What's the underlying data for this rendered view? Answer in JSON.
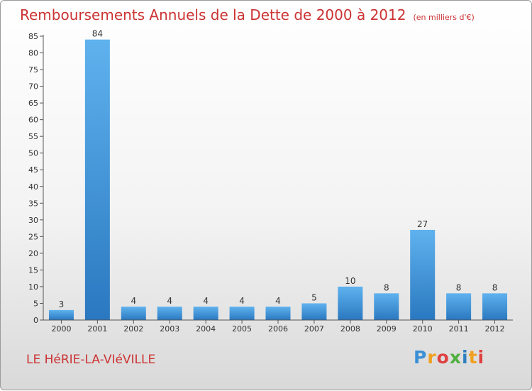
{
  "chart_data": {
    "type": "bar",
    "title": "Remboursements Annuels de la Dette de 2000 à 2012",
    "subtitle": "(en milliers d'€)",
    "categories": [
      "2000",
      "2001",
      "2002",
      "2003",
      "2004",
      "2005",
      "2006",
      "2007",
      "2008",
      "2009",
      "2010",
      "2011",
      "2012"
    ],
    "values": [
      3,
      84,
      4,
      4,
      4,
      4,
      4,
      5,
      10,
      8,
      27,
      8,
      8
    ],
    "ylim": [
      0,
      85
    ],
    "yticks": [
      0,
      5,
      10,
      15,
      20,
      25,
      30,
      35,
      40,
      45,
      50,
      55,
      60,
      65,
      70,
      75,
      80,
      85
    ],
    "grid": false,
    "bar_color": "#3d97dd",
    "bar_color_light": "#5fb2ee",
    "bar_color_dark": "#2a78c0"
  },
  "location": "LE HéRIE-LA-VIéVILLE",
  "logo": {
    "text": "Proxiti",
    "colors": [
      "#3a8fd6",
      "#f0a020",
      "#e04040",
      "#50b040",
      "#2f7fc0"
    ]
  },
  "title_color": "#cc3333"
}
